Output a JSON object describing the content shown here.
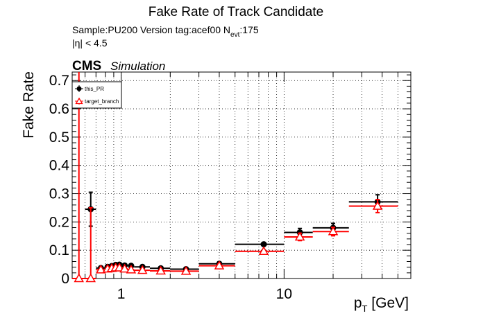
{
  "header": {
    "title": "Fake Rate of Track Candidate",
    "sample_line_prefix": "Sample:PU200   Version tag:acef00  N",
    "sample_line_sub": "evt",
    "sample_line_suffix": ":175",
    "eta_cut": "|η| < 4.5",
    "cms_label": "CMS",
    "simulation_label": "Simulation"
  },
  "chart_data": {
    "type": "scatter",
    "title": "Fake Rate of Track Candidate",
    "xlabel_main": "p",
    "xlabel_sub": "T",
    "xlabel_unit": " [GeV]",
    "ylabel": "Fake Rate",
    "x_scale": "log",
    "xlim": [
      0.5,
      60
    ],
    "ylim": [
      0,
      0.73
    ],
    "x_ticks": [
      {
        "value": 1,
        "label": "1"
      },
      {
        "value": 10,
        "label": "10"
      }
    ],
    "y_ticks": [
      {
        "value": 0,
        "label": "0"
      },
      {
        "value": 0.1,
        "label": "0.1"
      },
      {
        "value": 0.2,
        "label": "0.2"
      },
      {
        "value": 0.3,
        "label": "0.3"
      },
      {
        "value": 0.4,
        "label": "0.4"
      },
      {
        "value": 0.5,
        "label": "0.5"
      },
      {
        "value": 0.6,
        "label": "0.6"
      },
      {
        "value": 0.7,
        "label": "0.7"
      }
    ],
    "grid": true,
    "legend_position": "top-left",
    "series": [
      {
        "name": "this_PR",
        "color": "#000000",
        "marker": "circle",
        "points": [
          {
            "xlo": 0.6,
            "xhi": 0.7,
            "x": 0.65,
            "y": 0.245,
            "err": 0.06
          },
          {
            "xlo": 0.7,
            "xhi": 0.8,
            "x": 0.75,
            "y": 0.037,
            "err": 0.006
          },
          {
            "xlo": 0.8,
            "xhi": 0.85,
            "x": 0.825,
            "y": 0.041,
            "err": 0.006
          },
          {
            "xlo": 0.85,
            "xhi": 0.9,
            "x": 0.875,
            "y": 0.044,
            "err": 0.006
          },
          {
            "xlo": 0.9,
            "xhi": 0.95,
            "x": 0.925,
            "y": 0.048,
            "err": 0.006
          },
          {
            "xlo": 0.95,
            "xhi": 1.0,
            "x": 0.975,
            "y": 0.049,
            "err": 0.006
          },
          {
            "xlo": 1.0,
            "xhi": 1.1,
            "x": 1.05,
            "y": 0.046,
            "err": 0.006
          },
          {
            "xlo": 1.1,
            "xhi": 1.2,
            "x": 1.15,
            "y": 0.045,
            "err": 0.006
          },
          {
            "xlo": 1.2,
            "xhi": 1.5,
            "x": 1.35,
            "y": 0.041,
            "err": 0.005
          },
          {
            "xlo": 1.5,
            "xhi": 2.0,
            "x": 1.75,
            "y": 0.036,
            "err": 0.005
          },
          {
            "xlo": 2.0,
            "xhi": 3.0,
            "x": 2.5,
            "y": 0.033,
            "err": 0.005
          },
          {
            "xlo": 3.0,
            "xhi": 5.0,
            "x": 4.0,
            "y": 0.052,
            "err": 0.007
          },
          {
            "xlo": 5.0,
            "xhi": 10.0,
            "x": 7.5,
            "y": 0.121,
            "err": 0.005
          },
          {
            "xlo": 10.0,
            "xhi": 15.0,
            "x": 12.5,
            "y": 0.163,
            "err": 0.014
          },
          {
            "xlo": 15.0,
            "xhi": 25.0,
            "x": 20.0,
            "y": 0.179,
            "err": 0.016
          },
          {
            "xlo": 25.0,
            "xhi": 50.0,
            "x": 37.5,
            "y": 0.271,
            "err": 0.025
          }
        ]
      },
      {
        "name": "target_branch",
        "color": "#ff0000",
        "marker": "triangle",
        "points": [
          {
            "xlo": 0.5,
            "xhi": 0.6,
            "x": 0.55,
            "y": 0.0,
            "err": 0.73
          },
          {
            "xlo": 0.6,
            "xhi": 0.7,
            "x": 0.65,
            "y": 0.0,
            "err": 0.25
          },
          {
            "xlo": 0.7,
            "xhi": 0.8,
            "x": 0.75,
            "y": 0.031,
            "err": 0.005
          },
          {
            "xlo": 0.8,
            "xhi": 0.85,
            "x": 0.825,
            "y": 0.034,
            "err": 0.005
          },
          {
            "xlo": 0.85,
            "xhi": 0.9,
            "x": 0.875,
            "y": 0.036,
            "err": 0.005
          },
          {
            "xlo": 0.9,
            "xhi": 0.95,
            "x": 0.925,
            "y": 0.038,
            "err": 0.005
          },
          {
            "xlo": 0.95,
            "xhi": 1.0,
            "x": 0.975,
            "y": 0.038,
            "err": 0.005
          },
          {
            "xlo": 1.0,
            "xhi": 1.1,
            "x": 1.05,
            "y": 0.034,
            "err": 0.005
          },
          {
            "xlo": 1.1,
            "xhi": 1.2,
            "x": 1.15,
            "y": 0.031,
            "err": 0.005
          },
          {
            "xlo": 1.2,
            "xhi": 1.5,
            "x": 1.35,
            "y": 0.029,
            "err": 0.005
          },
          {
            "xlo": 1.5,
            "xhi": 2.0,
            "x": 1.75,
            "y": 0.027,
            "err": 0.004
          },
          {
            "xlo": 2.0,
            "xhi": 3.0,
            "x": 2.5,
            "y": 0.026,
            "err": 0.004
          },
          {
            "xlo": 3.0,
            "xhi": 5.0,
            "x": 4.0,
            "y": 0.045,
            "err": 0.006
          },
          {
            "xlo": 5.0,
            "xhi": 10.0,
            "x": 7.5,
            "y": 0.096,
            "err": 0.005
          },
          {
            "xlo": 10.0,
            "xhi": 15.0,
            "x": 12.5,
            "y": 0.147,
            "err": 0.013
          },
          {
            "xlo": 15.0,
            "xhi": 25.0,
            "x": 20.0,
            "y": 0.166,
            "err": 0.015
          },
          {
            "xlo": 25.0,
            "xhi": 50.0,
            "x": 37.5,
            "y": 0.256,
            "err": 0.023
          }
        ]
      }
    ]
  }
}
